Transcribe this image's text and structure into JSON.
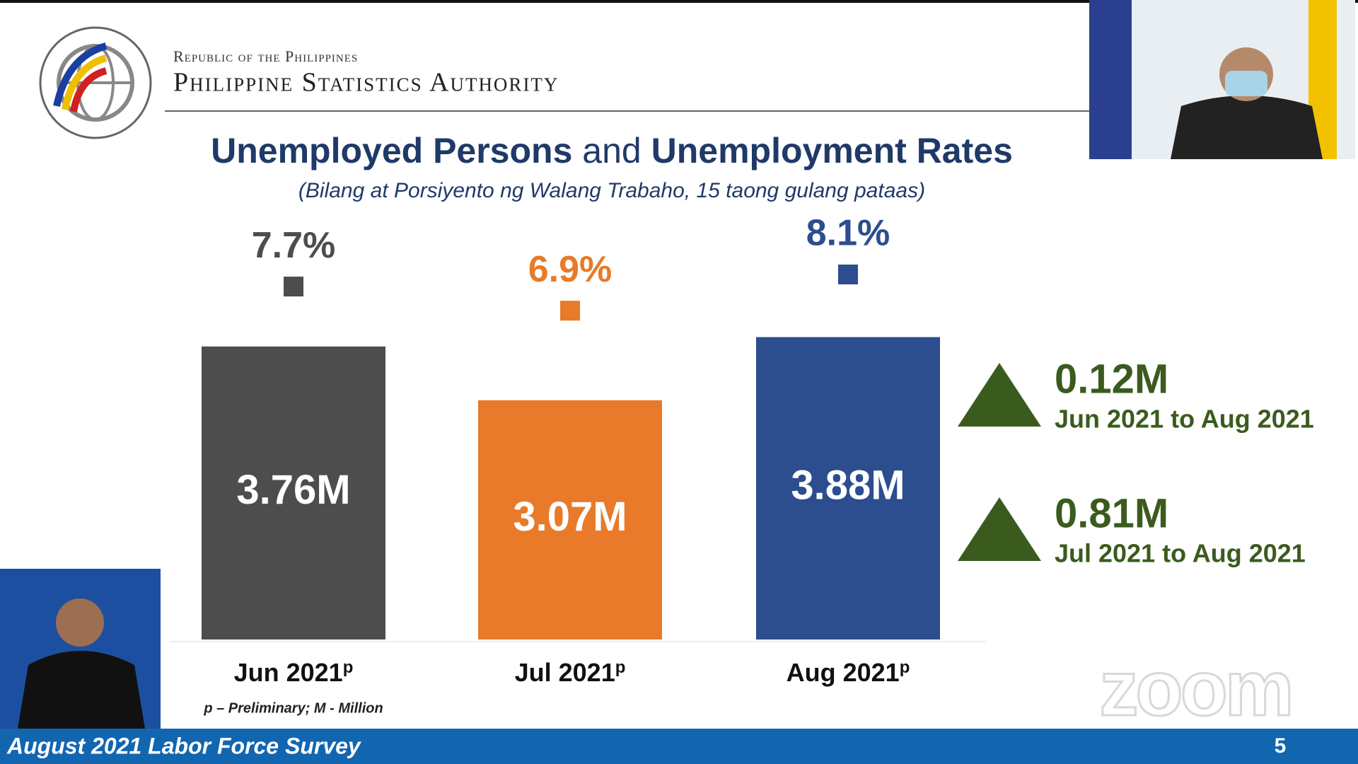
{
  "header": {
    "republic": "Republic of the Philippines",
    "agency": "Philippine Statistics Authority"
  },
  "chart_data": {
    "type": "bar",
    "title": [
      "Unemployed Persons",
      "and",
      "Unemployment Rates"
    ],
    "subtitle": "(Bilang at Porsiyento ng Walang Trabaho, 15 taong gulang pataas)",
    "categories": [
      "Jun 2021",
      "Jul 2021",
      "Aug 2021"
    ],
    "category_mark": "p",
    "series": [
      {
        "colors": [
          "#4d4d4d",
          "#e87a2a",
          "#2c4d8e"
        ],
        "values": [
          3.76,
          3.07,
          3.88
        ],
        "value_labels": [
          "3.76M",
          "3.07M",
          "3.88M"
        ]
      },
      {
        "type": "scatter",
        "axis": "y2",
        "colors": [
          "#4d4d4d",
          "#e87a2a",
          "#2c4d8e"
        ],
        "values": [
          7.7,
          6.9,
          8.1
        ],
        "value_labels": [
          "7.7%",
          "6.9%",
          "8.1%"
        ]
      }
    ],
    "ylim": [
      0,
      6
    ],
    "y2lim": [
      -4,
      11.5
    ],
    "changes": [
      {
        "value": 0.12,
        "label": "0.12M",
        "period": "Jun 2021 to Aug 2021"
      },
      {
        "value": 0.81,
        "label": "0.81M",
        "period": "Jul 2021 to Aug 2021"
      }
    ],
    "change_color": "#3b5b1e",
    "footnote": "p – Preliminary; M - Million"
  },
  "footer": {
    "title": "August 2021 Labor Force Survey",
    "page": "5"
  },
  "watermark": "zoom"
}
